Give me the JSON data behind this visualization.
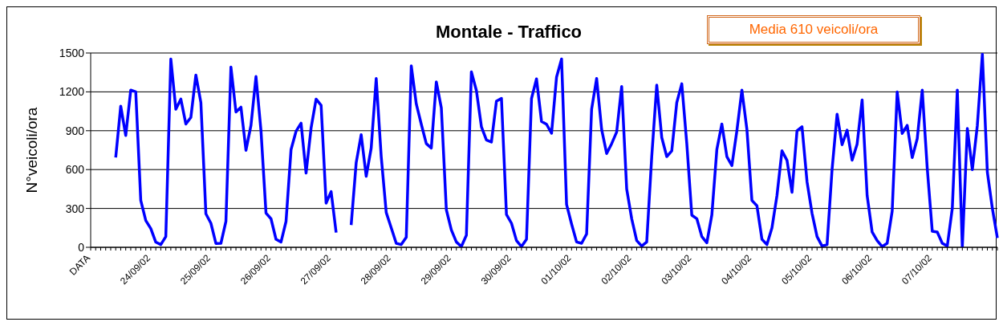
{
  "chart_data": {
    "type": "line",
    "title": "Montale  - Traffico",
    "ylabel": "N°veicoli/ora",
    "annotations": [
      "Media  610 veicoli/ora"
    ],
    "categories": [
      "DATA",
      null,
      null,
      null,
      null,
      null,
      null,
      null,
      null,
      null,
      null,
      null,
      "24/09/02",
      null,
      null,
      null,
      null,
      null,
      null,
      null,
      null,
      null,
      null,
      null,
      "25/09/02",
      null,
      null,
      null,
      null,
      null,
      null,
      null,
      null,
      null,
      null,
      null,
      "26/09/02",
      null,
      null,
      null,
      null,
      null,
      null,
      null,
      null,
      null,
      null,
      null,
      "27/09/02",
      null,
      null,
      null,
      null,
      null,
      null,
      null,
      null,
      null,
      null,
      null,
      "28/09/02",
      null,
      null,
      null,
      null,
      null,
      null,
      null,
      null,
      null,
      null,
      null,
      "29/09/02",
      null,
      null,
      null,
      null,
      null,
      null,
      null,
      null,
      null,
      null,
      null,
      "30/09/02",
      null,
      null,
      null,
      null,
      null,
      null,
      null,
      null,
      null,
      null,
      null,
      "01/10/02",
      null,
      null,
      null,
      null,
      null,
      null,
      null,
      null,
      null,
      null,
      null,
      "02/10/02",
      null,
      null,
      null,
      null,
      null,
      null,
      null,
      null,
      null,
      null,
      null,
      "03/10/02",
      null,
      null,
      null,
      null,
      null,
      null,
      null,
      null,
      null,
      null,
      null,
      "04/10/02",
      null,
      null,
      null,
      null,
      null,
      null,
      null,
      null,
      null,
      null,
      null,
      "05/10/02",
      null,
      null,
      null,
      null,
      null,
      null,
      null,
      null,
      null,
      null,
      null,
      "06/10/02",
      null,
      null,
      null,
      null,
      null,
      null,
      null,
      null,
      null,
      null,
      null,
      "07/10/02",
      null,
      null,
      null,
      null,
      null,
      null,
      null,
      null,
      null,
      null,
      null,
      null,
      null
    ],
    "series": [
      {
        "color": "#0000ff",
        "values": [
          null,
          null,
          null,
          null,
          null,
          693,
          1090,
          863,
          1214,
          1200,
          362,
          207,
          145,
          40,
          21,
          83,
          1454,
          1066,
          1144,
          952,
          1003,
          1330,
          1117,
          259,
          186,
          30,
          31,
          200,
          1392,
          1045,
          1082,
          749,
          941,
          1318,
          900,
          264,
          220,
          62,
          41,
          200,
          755,
          896,
          958,
          573,
          921,
          1144,
          1097,
          341,
          430,
          114,
          null,
          null,
          172,
          652,
          869,
          548,
          766,
          1303,
          700,
          269,
          150,
          31,
          21,
          77,
          1401,
          1107,
          950,
          800,
          766,
          1277,
          1076,
          290,
          134,
          41,
          6,
          93,
          1355,
          1210,
          931,
          828,
          813,
          1128,
          1150,
          254,
          186,
          52,
          6,
          62,
          1148,
          1300,
          972,
          950,
          880,
          1314,
          1454,
          331,
          180,
          41,
          31,
          103,
          1066,
          1303,
          910,
          724,
          800,
          890,
          1241,
          450,
          221,
          52,
          10,
          41,
          700,
          1252,
          848,
          700,
          745,
          1117,
          1262,
          800,
          248,
          221,
          83,
          35,
          250,
          755,
          952,
          700,
          631,
          900,
          1214,
          910,
          362,
          321,
          62,
          21,
          150,
          400,
          745,
          672,
          424,
          900,
          931,
          507,
          263,
          83,
          10,
          21,
          600,
          1028,
          792,
          904,
          672,
          797,
          1138,
          400,
          118,
          52,
          6,
          31,
          279,
          1200,
          879,
          941,
          693,
          838,
          1214,
          610,
          124,
          118,
          31,
          10,
          300,
          1214,
          0,
          917,
          600,
          941,
          1490,
          579,
          300,
          72
        ]
      }
    ],
    "ylim": [
      0,
      1500
    ],
    "yticks": [
      0,
      300,
      600,
      900,
      1200,
      1500
    ],
    "grid": "y",
    "legend": false,
    "marker": "none",
    "line_style": "solid"
  }
}
